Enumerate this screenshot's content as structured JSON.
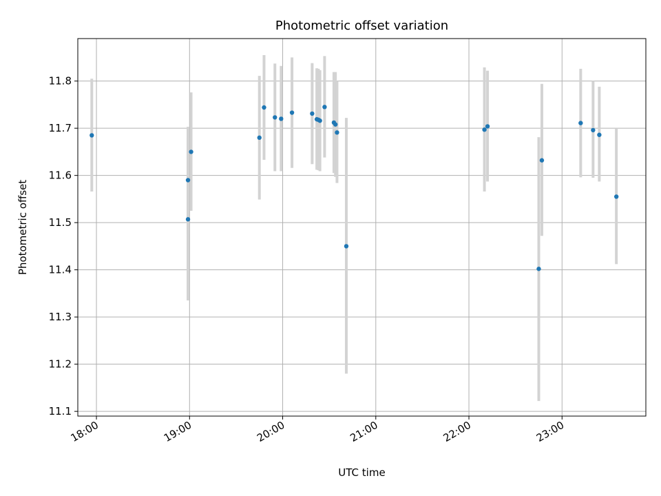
{
  "chart_data": {
    "type": "scatter",
    "title": "Photometric offset variation",
    "xlabel": "UTC time",
    "ylabel": "Photometric offset",
    "grid": true,
    "xlim": [
      "17:48",
      "23:54"
    ],
    "ylim": [
      11.09,
      11.89
    ],
    "x_ticks": [
      "18:00",
      "19:00",
      "20:00",
      "21:00",
      "22:00",
      "23:00"
    ],
    "y_ticks": [
      "11.1",
      "11.2",
      "11.3",
      "11.4",
      "11.5",
      "11.6",
      "11.7",
      "11.8"
    ],
    "colors": {
      "point": "#1f77b4",
      "errorbar": "#d3d3d3",
      "grid": "#b0b0b0"
    },
    "points": [
      {
        "x": "17:57",
        "y": 11.685,
        "lo": 11.566,
        "hi": 11.805
      },
      {
        "x": "18:59",
        "y": 11.59,
        "lo": 11.477,
        "hi": 11.703
      },
      {
        "x": "18:59",
        "y": 11.507,
        "lo": 11.335,
        "hi": 11.68
      },
      {
        "x": "19:01",
        "y": 11.65,
        "lo": 11.525,
        "hi": 11.776
      },
      {
        "x": "19:45",
        "y": 11.68,
        "lo": 11.549,
        "hi": 11.811
      },
      {
        "x": "19:48",
        "y": 11.744,
        "lo": 11.633,
        "hi": 11.855
      },
      {
        "x": "19:55",
        "y": 11.723,
        "lo": 11.609,
        "hi": 11.837
      },
      {
        "x": "19:59",
        "y": 11.72,
        "lo": 11.609,
        "hi": 11.832
      },
      {
        "x": "20:06",
        "y": 11.733,
        "lo": 11.616,
        "hi": 11.85
      },
      {
        "x": "20:19",
        "y": 11.731,
        "lo": 11.624,
        "hi": 11.838
      },
      {
        "x": "20:22",
        "y": 11.719,
        "lo": 11.612,
        "hi": 11.827
      },
      {
        "x": "20:23",
        "y": 11.718,
        "lo": 11.611,
        "hi": 11.826
      },
      {
        "x": "20:24",
        "y": 11.716,
        "lo": 11.609,
        "hi": 11.823
      },
      {
        "x": "20:27",
        "y": 11.745,
        "lo": 11.638,
        "hi": 11.853
      },
      {
        "x": "20:33",
        "y": 11.712,
        "lo": 11.605,
        "hi": 11.819
      },
      {
        "x": "20:34",
        "y": 11.708,
        "lo": 11.597,
        "hi": 11.819
      },
      {
        "x": "20:35",
        "y": 11.691,
        "lo": 11.584,
        "hi": 11.8
      },
      {
        "x": "20:41",
        "y": 11.45,
        "lo": 11.18,
        "hi": 11.722
      },
      {
        "x": "22:10",
        "y": 11.697,
        "lo": 11.566,
        "hi": 11.829
      },
      {
        "x": "22:12",
        "y": 11.704,
        "lo": 11.587,
        "hi": 11.822
      },
      {
        "x": "22:45",
        "y": 11.402,
        "lo": 11.122,
        "hi": 11.681
      },
      {
        "x": "22:47",
        "y": 11.632,
        "lo": 11.472,
        "hi": 11.794
      },
      {
        "x": "23:12",
        "y": 11.711,
        "lo": 11.596,
        "hi": 11.826
      },
      {
        "x": "23:20",
        "y": 11.696,
        "lo": 11.595,
        "hi": 11.8
      },
      {
        "x": "23:24",
        "y": 11.686,
        "lo": 11.587,
        "hi": 11.788
      },
      {
        "x": "23:35",
        "y": 11.555,
        "lo": 11.412,
        "hi": 11.7
      }
    ]
  }
}
